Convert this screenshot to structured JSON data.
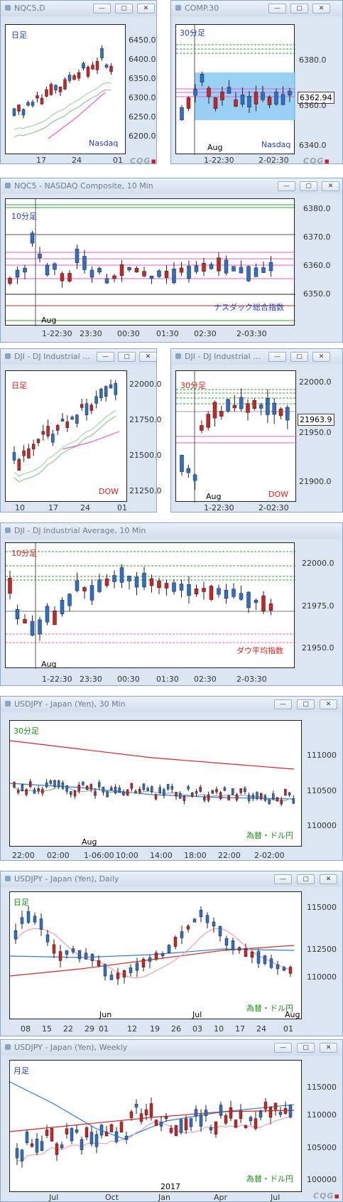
{
  "common": {
    "minimize": "—",
    "restore": "▢",
    "close": "✕",
    "cqg": "CQG",
    "aug": "Aug"
  },
  "colors": {
    "up": "#2f6fc7",
    "down": "#c82525",
    "green": "#2ca02c",
    "red": "#d62728",
    "pink": "#e05ed3",
    "blue": "#2f7fe0"
  },
  "panels": [
    {
      "id": "nqc5-daily",
      "title": "NQC5,D",
      "tf": "日足",
      "tf_color": "#1f3fcf",
      "label": "Nasdaq",
      "label_color": "#1f3fcf",
      "yticks": [
        "6450.0",
        "6400.0",
        "6350.0",
        "6300.0",
        "6250.0",
        "6200.0"
      ],
      "xticks": [
        "17",
        "24",
        "01"
      ]
    },
    {
      "id": "comp-30",
      "title": "COMP.30",
      "tf": "30分足",
      "tf_color": "#1f3fcf",
      "label": "Nasdaq",
      "label_color": "#1f3fcf",
      "yticks": [
        "6380.0",
        "6360.0",
        "6340.0"
      ],
      "xticks": [
        "1-22:30",
        "2-02:30"
      ],
      "price": "6362.94"
    },
    {
      "id": "nqc5-10m",
      "title": "NQC5 - NASDAQ Composite, 10 Min",
      "tf": "10分足",
      "tf_color": "#1f3fcf",
      "label": "ナスダック総合指数",
      "label_color": "#1f3fcf",
      "yticks": [
        "6380.0",
        "6370.0",
        "6360.0",
        "6350.0"
      ],
      "xticks": [
        "1-22:30",
        "23:30",
        "00:30",
        "01:30",
        "02:30",
        "2-03:30"
      ]
    },
    {
      "id": "dji-daily",
      "title": "DJI - DJ Industrial ...",
      "tf": "日足",
      "tf_color": "#e02020",
      "label": "DOW",
      "label_color": "#e02020",
      "yticks": [
        "22000.0",
        "21750.0",
        "21500.0",
        "21250.0"
      ],
      "xticks": [
        "10",
        "17",
        "24",
        "01"
      ]
    },
    {
      "id": "dji-30",
      "title": "DJI - DJ Industrial ...",
      "tf": "30分足",
      "tf_color": "#e02020",
      "label": "DOW",
      "label_color": "#e02020",
      "yticks": [
        "22000.0",
        "21950.0",
        "21900.0"
      ],
      "xticks": [
        "1-22:30",
        "2-02:30"
      ],
      "price": "21963.9"
    },
    {
      "id": "dji-10m",
      "title": "DJI - DJ Industrial Average, 10 Min",
      "tf": "10分足",
      "tf_color": "#e02020",
      "label": "ダウ平均指数",
      "label_color": "#e02020",
      "yticks": [
        "22000.0",
        "21975.0",
        "21950.0"
      ],
      "xticks": [
        "1-22:30",
        "23:30",
        "00:30",
        "01:30",
        "02:30",
        "2-03:30"
      ]
    },
    {
      "id": "usdjpy-30",
      "title": "USDJPY - Japan (Yen), 30 Min",
      "tf": "30分足",
      "tf_color": "#1a8f1a",
      "label": "為替・ドル円",
      "label_color": "#1a8f1a",
      "yticks": [
        "111000",
        "110500",
        "110000"
      ],
      "xticks": [
        "22:00",
        "02:00",
        "1-06:00",
        "10:00",
        "14:00",
        "18:00",
        "22:00",
        "2-02:00"
      ]
    },
    {
      "id": "usdjpy-d",
      "title": "USDJPY - Japan (Yen), Daily",
      "tf": "日足",
      "tf_color": "#1a8f1a",
      "label": "為替・ドル円",
      "label_color": "#1a8f1a",
      "yticks": [
        "115000",
        "112500",
        "110000"
      ],
      "xticks": [
        "08",
        "15",
        "22",
        "29",
        "01",
        "12",
        "19",
        "26",
        "03",
        "10",
        "17",
        "24",
        "01"
      ],
      "months": [
        "Jun",
        "Jul",
        "Aug"
      ]
    },
    {
      "id": "usdjpy-w",
      "title": "USDJPY - Japan (Yen), Weekly",
      "tf": "月足",
      "tf_color": "#1f3fcf",
      "label": "為替・ドル円",
      "label_color": "#1a8f1a",
      "yticks": [
        "115000",
        "110000",
        "105000",
        "100000"
      ],
      "xticks": [
        "Jul",
        "Oct",
        "Jan",
        "Apr",
        "Jul"
      ],
      "year": "2017"
    }
  ]
}
